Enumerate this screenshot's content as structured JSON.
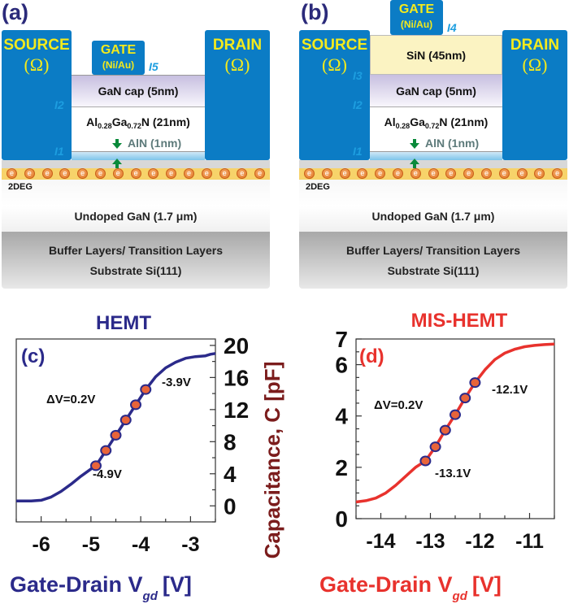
{
  "panels": [
    {
      "label": "(a)",
      "source": "SOURCE",
      "drain": "DRAIN",
      "ohm": "(Ω)",
      "gate": "GATE",
      "gate_metal": "(Ni/Au)",
      "gate_iface": "I5",
      "cap": "GaN cap (5nm)",
      "algan_al": "Al",
      "algan_x": "0.28",
      "algan_ga": "Ga",
      "algan_y": "0.72",
      "algan_rest": "N (21nm)",
      "aln": "AlN (1nm)",
      "i1": "I1",
      "i2": "I2",
      "twodeg": "2DEG",
      "undoped": "Undoped GaN (1.7 μm)",
      "buffer": "Buffer Layers/ Transition Layers",
      "substrate": "Substrate Si(111)",
      "electron": "e"
    },
    {
      "label": "(b)",
      "source": "SOURCE",
      "drain": "DRAIN",
      "ohm": "(Ω)",
      "gate": "GATE",
      "gate_metal": "(Ni/Au)",
      "gate_iface": "I4",
      "sin": "SiN (45nm)",
      "i3": "I3",
      "cap": "GaN cap (5nm)",
      "algan_al": "Al",
      "algan_x": "0.28",
      "algan_ga": "Ga",
      "algan_y": "0.72",
      "algan_rest": "N (21nm)",
      "aln": "AlN (1nm)",
      "i1": "I1",
      "i2": "I2",
      "twodeg": "2DEG",
      "undoped": "Undoped GaN (1.7 μm)",
      "buffer": "Buffer Layers/ Transition Layers",
      "substrate": "Substrate Si(111)",
      "electron": "e"
    }
  ],
  "colors": {
    "metal": "#0b7cc5",
    "hemt": "#2b2a8a",
    "mis_hemt": "#e8322d",
    "marker": "#e8643a",
    "ylabel": "#7b1c1c"
  },
  "shared_ylabel": "Capacitance, C [pF]",
  "chart_data": [
    {
      "type": "line",
      "panel_label": "(c)",
      "title": "HEMT",
      "xlabel": "Gate-Drain V",
      "xlabel_sub": "gd",
      "xlabel_unit": "[V]",
      "xlim": [
        -6.5,
        -2.5
      ],
      "ylim": [
        -2,
        20.8
      ],
      "xticks": [
        -6,
        -5,
        -4,
        -3
      ],
      "yticks": [
        0,
        4,
        8,
        12,
        16,
        20
      ],
      "y_axis_side": "right",
      "grid": false,
      "x": [
        -6.5,
        -6.2,
        -6.0,
        -5.8,
        -5.6,
        -5.4,
        -5.2,
        -5.0,
        -4.9,
        -4.7,
        -4.5,
        -4.3,
        -4.1,
        -3.9,
        -3.7,
        -3.5,
        -3.3,
        -3.1,
        -2.9,
        -2.7,
        -2.6,
        -2.5
      ],
      "y": [
        0.6,
        0.6,
        0.7,
        1.1,
        1.8,
        2.7,
        3.7,
        4.6,
        5.0,
        6.9,
        8.8,
        10.7,
        12.6,
        14.5,
        16.1,
        17.2,
        17.9,
        18.4,
        18.6,
        18.7,
        18.9,
        19.0
      ],
      "markers": {
        "x": [
          -4.9,
          -4.7,
          -4.5,
          -4.3,
          -4.1,
          -3.9
        ],
        "y": [
          5.0,
          6.9,
          8.8,
          10.7,
          12.6,
          14.5
        ]
      },
      "annotations": [
        "ΔV=0.2V",
        "-3.9V",
        "-4.9V"
      ]
    },
    {
      "type": "line",
      "panel_label": "(d)",
      "title": "MIS-HEMT",
      "xlabel": "Gate-Drain V",
      "xlabel_sub": "gd",
      "xlabel_unit": "[V]",
      "xlim": [
        -14.5,
        -10.5
      ],
      "ylim": [
        0,
        7
      ],
      "xticks": [
        -14,
        -13,
        -12,
        -11
      ],
      "yticks": [
        0,
        2,
        4,
        6,
        7
      ],
      "y_axis_side": "left",
      "grid": false,
      "x": [
        -14.5,
        -14.3,
        -14.1,
        -13.9,
        -13.7,
        -13.5,
        -13.3,
        -13.1,
        -12.9,
        -12.7,
        -12.5,
        -12.3,
        -12.1,
        -11.9,
        -11.7,
        -11.5,
        -11.3,
        -11.1,
        -10.9,
        -10.7,
        -10.5
      ],
      "y": [
        0.65,
        0.7,
        0.8,
        1.0,
        1.3,
        1.65,
        2.0,
        2.25,
        2.8,
        3.45,
        4.05,
        4.7,
        5.3,
        5.8,
        6.2,
        6.45,
        6.6,
        6.7,
        6.75,
        6.78,
        6.8
      ],
      "markers": {
        "x": [
          -13.1,
          -12.9,
          -12.7,
          -12.5,
          -12.3,
          -12.1
        ],
        "y": [
          2.25,
          2.8,
          3.45,
          4.05,
          4.7,
          5.3
        ]
      },
      "annotations": [
        "ΔV=0.2V",
        "-12.1V",
        "-13.1V"
      ]
    }
  ]
}
